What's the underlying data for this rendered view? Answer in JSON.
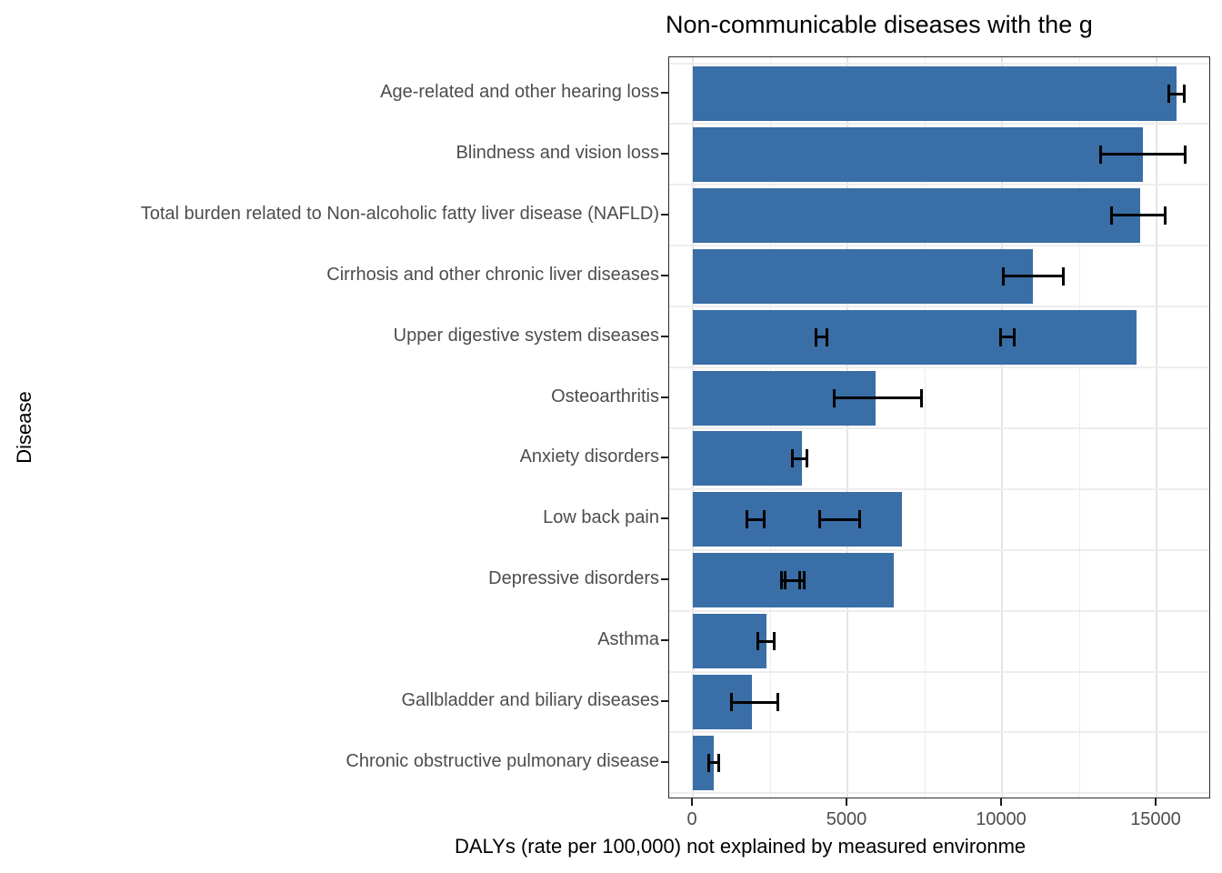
{
  "chart_data": {
    "type": "bar",
    "orientation": "horizontal",
    "title": "Non-communicable diseases with the g",
    "title_note": "title clipped at right edge of screenshot",
    "xlabel": "DALYs (rate per 100,000) not explained by measured environme",
    "xlabel_note": "axis title clipped at right edge of screenshot",
    "ylabel": "Disease",
    "x_ticks": [
      0,
      5000,
      10000,
      15000
    ],
    "xlim": [
      -790,
      16790
    ],
    "grid": true,
    "legend": "none",
    "bar_color": "#3a6ea6",
    "error_bar_color": "#000000",
    "categories": [
      "Age-related and other hearing loss",
      "Blindness and vision loss",
      "Total burden related to Non-alcoholic fatty liver disease (NAFLD)",
      "Cirrhosis and other chronic liver diseases",
      "Upper digestive system diseases",
      "Osteoarthritis",
      "Anxiety disorders",
      "Low back pain",
      "Depressive disorders",
      "Asthma",
      "Gallbladder and biliary diseases",
      "Chronic obstructive pulmonary disease"
    ],
    "values": [
      15650,
      14550,
      14480,
      11000,
      14350,
      5900,
      3520,
      6760,
      6490,
      2370,
      1910,
      680
    ],
    "error_bars": [
      [
        [
          15400,
          15900
        ]
      ],
      [
        [
          13200,
          15930
        ]
      ],
      [
        [
          13550,
          15290
        ]
      ],
      [
        [
          10040,
          11980
        ]
      ],
      [
        [
          3990,
          4330
        ],
        [
          9970,
          10410
        ]
      ],
      [
        [
          4580,
          7400
        ]
      ],
      [
        [
          3230,
          3700
        ]
      ],
      [
        [
          1740,
          2320
        ],
        [
          4090,
          5410
        ]
      ],
      [
        [
          2860,
          3470
        ],
        [
          2980,
          3590
        ]
      ],
      [
        [
          2100,
          2640
        ]
      ],
      [
        [
          1260,
          2740
        ]
      ],
      [
        [
          510,
          830
        ]
      ]
    ]
  }
}
